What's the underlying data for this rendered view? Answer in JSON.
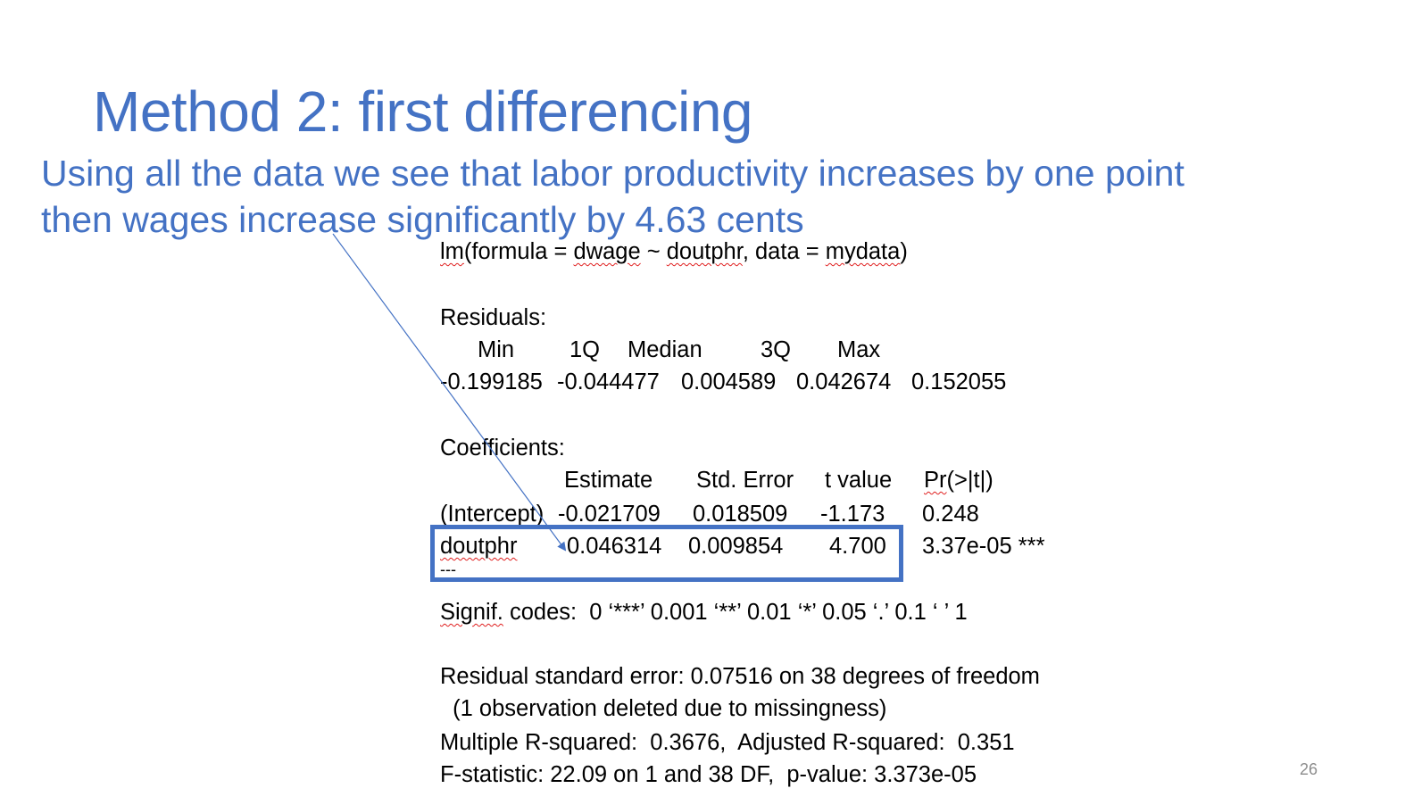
{
  "slide": {
    "title": "Method 2: first differencing",
    "subtitle_line1": "Using all the data we see that labor productivity increases by one point",
    "subtitle_line2": "then wages increase significantly by 4.63 cents",
    "page_number": "26"
  },
  "output": {
    "call": {
      "lm": "lm",
      "p1": "(formula = ",
      "dwage": "dwage",
      "tilde": " ~ ",
      "doutphr": "doutphr",
      "p2": ", data = ",
      "mydata": "mydata",
      "p3": ")"
    },
    "residuals_header": "Residuals:",
    "residuals_labels": [
      "Min",
      "1Q",
      "Median",
      "3Q",
      "Max"
    ],
    "residuals_values": [
      "-0.199185",
      "-0.044477",
      "0.004589",
      "0.042674",
      "0.152055"
    ],
    "coefficients_header": "Coefficients:",
    "coef_columns": [
      "Estimate",
      "Std. Error",
      "t value"
    ],
    "coef_pr_a": "Pr",
    "coef_pr_b": "(>|t|)",
    "rows": [
      {
        "name": "(Intercept)",
        "estimate": "-0.021709",
        "std_error": "0.018509",
        "t_value": "-1.173",
        "pr": "0.248"
      },
      {
        "name": "doutphr",
        "estimate": "0.046314",
        "std_error": "0.009854",
        "t_value": "4.700",
        "pr": "3.37e-05 ***"
      }
    ],
    "separator": "---",
    "signif_a": "Signif.",
    "signif_b": " codes:  0 ‘***’ 0.001 ‘**’ 0.01 ‘*’ 0.05 ‘.’ 0.1 ‘ ’ 1",
    "rse": "Residual standard error: 0.07516 on 38 degrees of freedom",
    "missing": "  (1 observation deleted due to missingness)",
    "rsq": "Multiple R-squared:  0.3676,  Adjusted R-squared:  0.351",
    "fstat": "F-statistic: 22.09 on 1 and 38 DF,  p-value: 3.373e-05"
  },
  "colors": {
    "accent": "#4472C4",
    "text": "#000000",
    "spellcheck": "#e02020"
  }
}
